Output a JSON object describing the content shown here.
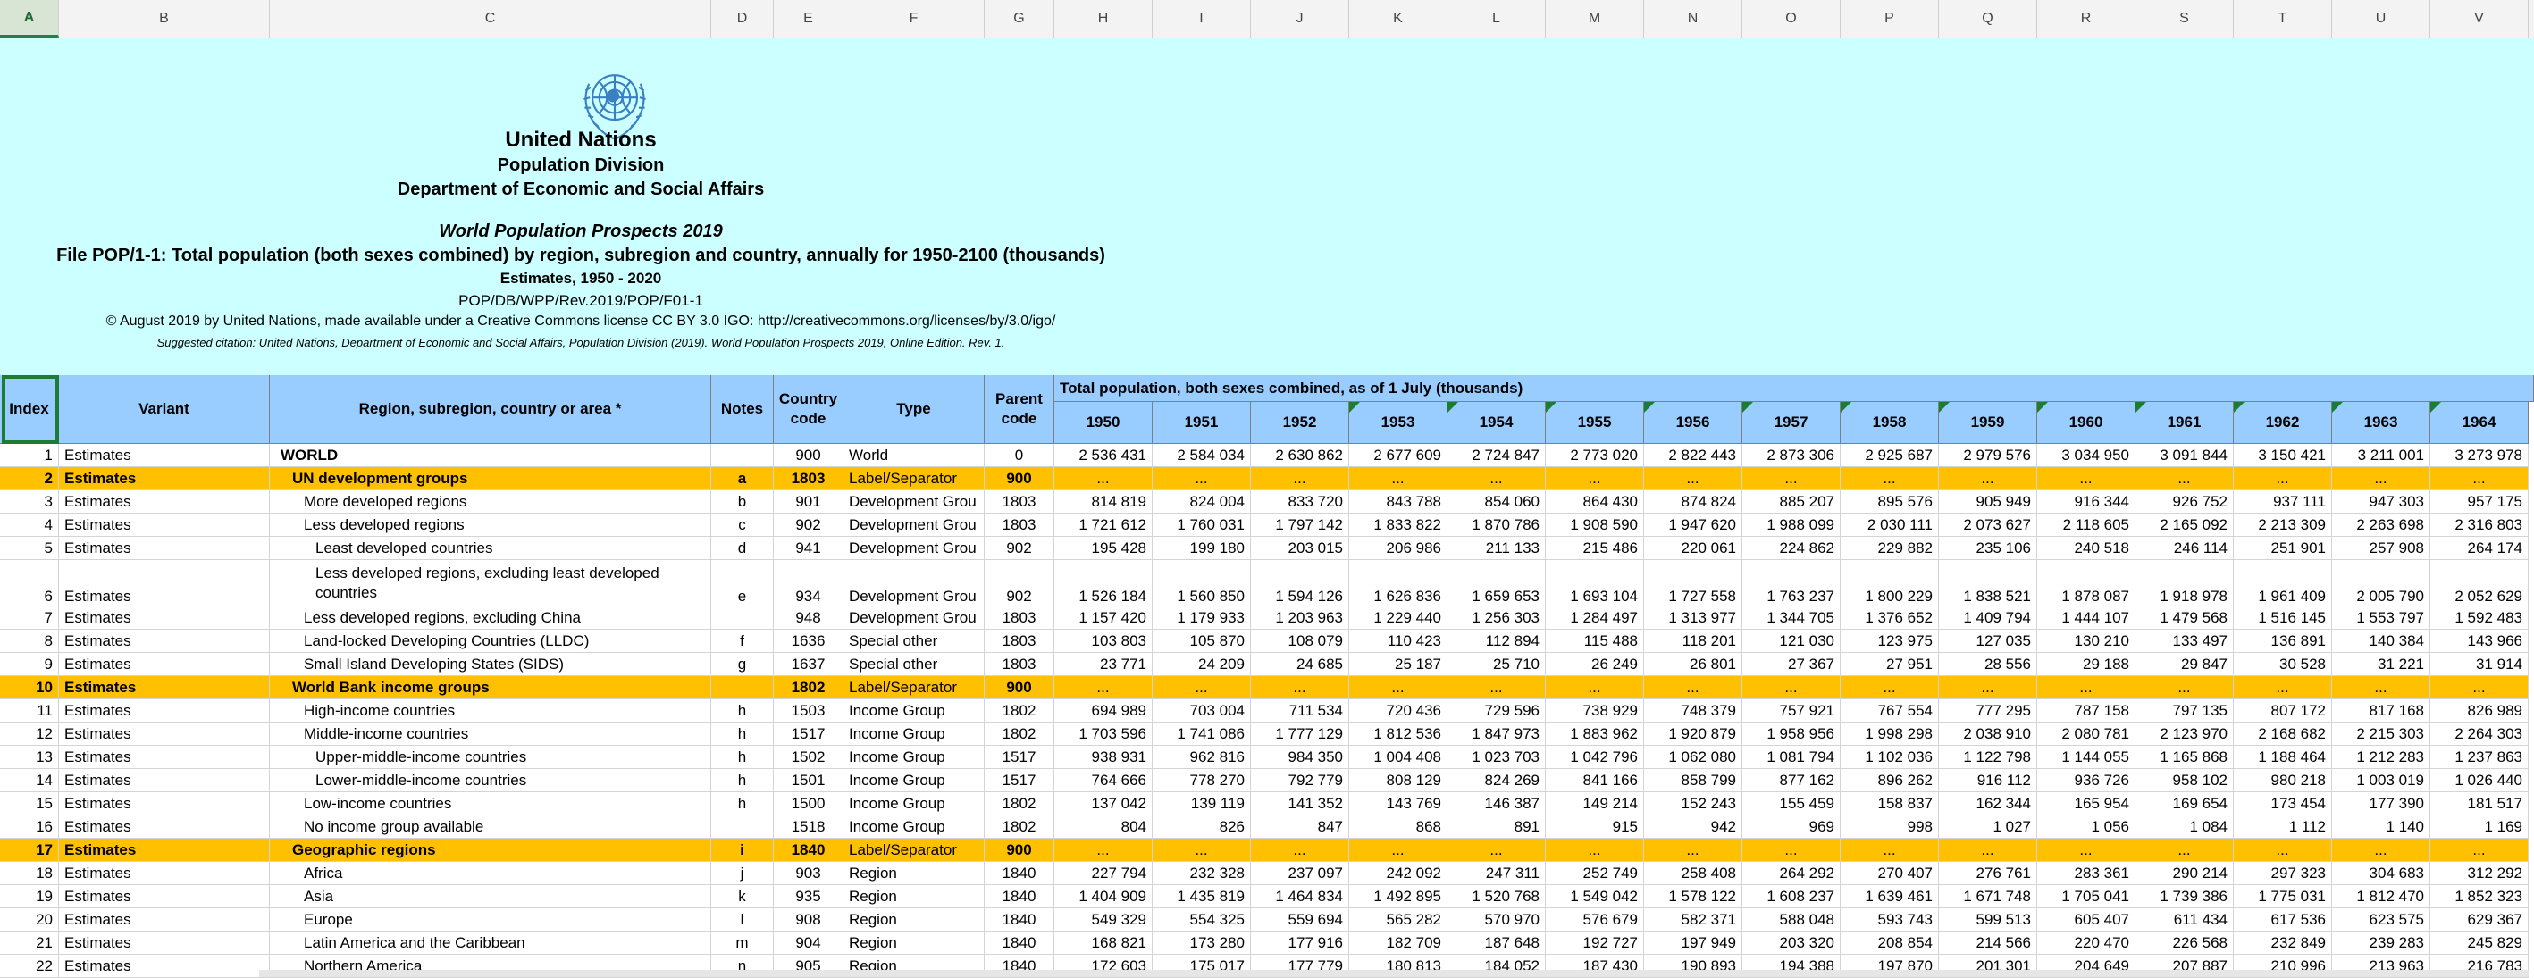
{
  "columns": [
    "A",
    "B",
    "C",
    "D",
    "E",
    "F",
    "G",
    "H",
    "I",
    "J",
    "K",
    "L",
    "M",
    "N",
    "O",
    "P",
    "Q",
    "R",
    "S",
    "T",
    "U",
    "V"
  ],
  "selected_column": "A",
  "banner": {
    "org": "United Nations",
    "division": "Population Division",
    "dept": "Department of Economic and Social Affairs",
    "publication": "World Population Prospects 2019",
    "file_title": "File POP/1-1: Total population (both sexes combined) by region, subregion and country, annually for 1950-2100 (thousands)",
    "estimates": "Estimates, 1950 - 2020",
    "code": "POP/DB/WPP/Rev.2019/POP/F01-1",
    "license": "© August 2019 by United Nations, made available under a Creative Commons license CC BY 3.0 IGO: http://creativecommons.org/licenses/by/3.0/igo/",
    "citation": "Suggested citation: United Nations, Department of Economic and Social Affairs, Population Division (2019). World Population Prospects 2019, Online Edition. Rev. 1."
  },
  "header": {
    "index": "Index",
    "variant": "Variant",
    "region": "Region, subregion, country or area *",
    "notes": "Notes",
    "country_code": "Country code",
    "type": "Type",
    "parent_code": "Parent code",
    "span_title": "Total population, both sexes combined, as of 1 July (thousands)",
    "years": [
      "1950",
      "1951",
      "1952",
      "1953",
      "1954",
      "1955",
      "1956",
      "1957",
      "1958",
      "1959",
      "1960",
      "1961",
      "1962",
      "1963",
      "1964"
    ]
  },
  "colors": {
    "banner_bg": "#ccffff",
    "header_bg": "#99ccff",
    "separator_bg": "#ffc000",
    "selection": "#1e7b34"
  },
  "rows": [
    {
      "index": "1",
      "variant": "Estimates",
      "region": "WORLD",
      "indent": 0,
      "bold": true,
      "notes": "",
      "code": "900",
      "type": "World",
      "parent": "0",
      "sep": false,
      "values": [
        "2 536 431",
        "2 584 034",
        "2 630 862",
        "2 677 609",
        "2 724 847",
        "2 773 020",
        "2 822 443",
        "2 873 306",
        "2 925 687",
        "2 979 576",
        "3 034 950",
        "3 091 844",
        "3 150 421",
        "3 211 001",
        "3 273 978"
      ]
    },
    {
      "index": "2",
      "variant": "Estimates",
      "region": "UN development groups",
      "indent": 1,
      "bold": true,
      "notes": "a",
      "code": "1803",
      "type": "Label/Separator",
      "parent": "900",
      "sep": true,
      "values": [
        "...",
        "...",
        "...",
        "...",
        "...",
        "...",
        "...",
        "...",
        "...",
        "...",
        "...",
        "...",
        "...",
        "...",
        "..."
      ]
    },
    {
      "index": "3",
      "variant": "Estimates",
      "region": "More developed regions",
      "indent": 2,
      "notes": "b",
      "code": "901",
      "type": "Development Grou",
      "parent": "1803",
      "values": [
        "814 819",
        "824 004",
        "833 720",
        "843 788",
        "854 060",
        "864 430",
        "874 824",
        "885 207",
        "895 576",
        "905 949",
        "916 344",
        "926 752",
        "937 111",
        "947 303",
        "957 175"
      ]
    },
    {
      "index": "4",
      "variant": "Estimates",
      "region": "Less developed regions",
      "indent": 2,
      "notes": "c",
      "code": "902",
      "type": "Development Grou",
      "parent": "1803",
      "values": [
        "1 721 612",
        "1 760 031",
        "1 797 142",
        "1 833 822",
        "1 870 786",
        "1 908 590",
        "1 947 620",
        "1 988 099",
        "2 030 111",
        "2 073 627",
        "2 118 605",
        "2 165 092",
        "2 213 309",
        "2 263 698",
        "2 316 803"
      ]
    },
    {
      "index": "5",
      "variant": "Estimates",
      "region": "Least developed countries",
      "indent": 3,
      "notes": "d",
      "code": "941",
      "type": "Development Grou",
      "parent": "902",
      "values": [
        "195 428",
        "199 180",
        "203 015",
        "206 986",
        "211 133",
        "215 486",
        "220 061",
        "224 862",
        "229 882",
        "235 106",
        "240 518",
        "246 114",
        "251 901",
        "257 908",
        "264 174"
      ]
    },
    {
      "index": "6",
      "variant": "Estimates",
      "region": "Less developed regions, excluding least developed countries",
      "indent": 3,
      "tall": true,
      "notes": "e",
      "code": "934",
      "type": "Development Grou",
      "parent": "902",
      "values": [
        "1 526 184",
        "1 560 850",
        "1 594 126",
        "1 626 836",
        "1 659 653",
        "1 693 104",
        "1 727 558",
        "1 763 237",
        "1 800 229",
        "1 838 521",
        "1 878 087",
        "1 918 978",
        "1 961 409",
        "2 005 790",
        "2 052 629"
      ]
    },
    {
      "index": "7",
      "variant": "Estimates",
      "region": "Less developed regions, excluding China",
      "indent": 2,
      "notes": "",
      "code": "948",
      "type": "Development Grou",
      "parent": "1803",
      "values": [
        "1 157 420",
        "1 179 933",
        "1 203 963",
        "1 229 440",
        "1 256 303",
        "1 284 497",
        "1 313 977",
        "1 344 705",
        "1 376 652",
        "1 409 794",
        "1 444 107",
        "1 479 568",
        "1 516 145",
        "1 553 797",
        "1 592 483"
      ]
    },
    {
      "index": "8",
      "variant": "Estimates",
      "region": "Land-locked Developing Countries (LLDC)",
      "indent": 2,
      "notes": "f",
      "code": "1636",
      "type": "Special other",
      "parent": "1803",
      "values": [
        "103 803",
        "105 870",
        "108 079",
        "110 423",
        "112 894",
        "115 488",
        "118 201",
        "121 030",
        "123 975",
        "127 035",
        "130 210",
        "133 497",
        "136 891",
        "140 384",
        "143 966"
      ]
    },
    {
      "index": "9",
      "variant": "Estimates",
      "region": "Small Island Developing States (SIDS)",
      "indent": 2,
      "notes": "g",
      "code": "1637",
      "type": "Special other",
      "parent": "1803",
      "values": [
        "23 771",
        "24 209",
        "24 685",
        "25 187",
        "25 710",
        "26 249",
        "26 801",
        "27 367",
        "27 951",
        "28 556",
        "29 188",
        "29 847",
        "30 528",
        "31 221",
        "31 914"
      ]
    },
    {
      "index": "10",
      "variant": "Estimates",
      "region": "World Bank income groups",
      "indent": 1,
      "bold": true,
      "notes": "",
      "code": "1802",
      "type": "Label/Separator",
      "parent": "900",
      "sep": true,
      "values": [
        "...",
        "...",
        "...",
        "...",
        "...",
        "...",
        "...",
        "...",
        "...",
        "...",
        "...",
        "...",
        "...",
        "...",
        "..."
      ]
    },
    {
      "index": "11",
      "variant": "Estimates",
      "region": "High-income countries",
      "indent": 2,
      "notes": "h",
      "code": "1503",
      "type": "Income Group",
      "parent": "1802",
      "values": [
        "694 989",
        "703 004",
        "711 534",
        "720 436",
        "729 596",
        "738 929",
        "748 379",
        "757 921",
        "767 554",
        "777 295",
        "787 158",
        "797 135",
        "807 172",
        "817 168",
        "826 989"
      ]
    },
    {
      "index": "12",
      "variant": "Estimates",
      "region": "Middle-income countries",
      "indent": 2,
      "notes": "h",
      "code": "1517",
      "type": "Income Group",
      "parent": "1802",
      "values": [
        "1 703 596",
        "1 741 086",
        "1 777 129",
        "1 812 536",
        "1 847 973",
        "1 883 962",
        "1 920 879",
        "1 958 956",
        "1 998 298",
        "2 038 910",
        "2 080 781",
        "2 123 970",
        "2 168 682",
        "2 215 303",
        "2 264 303"
      ]
    },
    {
      "index": "13",
      "variant": "Estimates",
      "region": "Upper-middle-income countries",
      "indent": 3,
      "notes": "h",
      "code": "1502",
      "type": "Income Group",
      "parent": "1517",
      "values": [
        "938 931",
        "962 816",
        "984 350",
        "1 004 408",
        "1 023 703",
        "1 042 796",
        "1 062 080",
        "1 081 794",
        "1 102 036",
        "1 122 798",
        "1 144 055",
        "1 165 868",
        "1 188 464",
        "1 212 283",
        "1 237 863"
      ]
    },
    {
      "index": "14",
      "variant": "Estimates",
      "region": "Lower-middle-income countries",
      "indent": 3,
      "notes": "h",
      "code": "1501",
      "type": "Income Group",
      "parent": "1517",
      "values": [
        "764 666",
        "778 270",
        "792 779",
        "808 129",
        "824 269",
        "841 166",
        "858 799",
        "877 162",
        "896 262",
        "916 112",
        "936 726",
        "958 102",
        "980 218",
        "1 003 019",
        "1 026 440"
      ]
    },
    {
      "index": "15",
      "variant": "Estimates",
      "region": "Low-income countries",
      "indent": 2,
      "notes": "h",
      "code": "1500",
      "type": "Income Group",
      "parent": "1802",
      "values": [
        "137 042",
        "139 119",
        "141 352",
        "143 769",
        "146 387",
        "149 214",
        "152 243",
        "155 459",
        "158 837",
        "162 344",
        "165 954",
        "169 654",
        "173 454",
        "177 390",
        "181 517"
      ]
    },
    {
      "index": "16",
      "variant": "Estimates",
      "region": "No income group available",
      "indent": 2,
      "notes": "",
      "code": "1518",
      "type": "Income Group",
      "parent": "1802",
      "values": [
        "804",
        "826",
        "847",
        "868",
        "891",
        "915",
        "942",
        "969",
        "998",
        "1 027",
        "1 056",
        "1 084",
        "1 112",
        "1 140",
        "1 169"
      ]
    },
    {
      "index": "17",
      "variant": "Estimates",
      "region": "Geographic regions",
      "indent": 1,
      "bold": true,
      "notes": "i",
      "code": "1840",
      "type": "Label/Separator",
      "parent": "900",
      "sep": true,
      "values": [
        "...",
        "...",
        "...",
        "...",
        "...",
        "...",
        "...",
        "...",
        "...",
        "...",
        "...",
        "...",
        "...",
        "...",
        "..."
      ]
    },
    {
      "index": "18",
      "variant": "Estimates",
      "region": "Africa",
      "indent": 2,
      "notes": "j",
      "code": "903",
      "type": "Region",
      "parent": "1840",
      "values": [
        "227 794",
        "232 328",
        "237 097",
        "242 092",
        "247 311",
        "252 749",
        "258 408",
        "264 292",
        "270 407",
        "276 761",
        "283 361",
        "290 214",
        "297 323",
        "304 683",
        "312 292"
      ]
    },
    {
      "index": "19",
      "variant": "Estimates",
      "region": "Asia",
      "indent": 2,
      "notes": "k",
      "code": "935",
      "type": "Region",
      "parent": "1840",
      "values": [
        "1 404 909",
        "1 435 819",
        "1 464 834",
        "1 492 895",
        "1 520 768",
        "1 549 042",
        "1 578 122",
        "1 608 237",
        "1 639 461",
        "1 671 748",
        "1 705 041",
        "1 739 386",
        "1 775 031",
        "1 812 470",
        "1 852 323"
      ]
    },
    {
      "index": "20",
      "variant": "Estimates",
      "region": "Europe",
      "indent": 2,
      "notes": "l",
      "code": "908",
      "type": "Region",
      "parent": "1840",
      "values": [
        "549 329",
        "554 325",
        "559 694",
        "565 282",
        "570 970",
        "576 679",
        "582 371",
        "588 048",
        "593 743",
        "599 513",
        "605 407",
        "611 434",
        "617 536",
        "623 575",
        "629 367"
      ]
    },
    {
      "index": "21",
      "variant": "Estimates",
      "region": "Latin America and the Caribbean",
      "indent": 2,
      "notes": "m",
      "code": "904",
      "type": "Region",
      "parent": "1840",
      "values": [
        "168 821",
        "173 280",
        "177 916",
        "182 709",
        "187 648",
        "192 727",
        "197 949",
        "203 320",
        "208 854",
        "214 566",
        "220 470",
        "226 568",
        "232 849",
        "239 283",
        "245 829"
      ]
    },
    {
      "index": "22",
      "variant": "Estimates",
      "region": "Northern America",
      "indent": 2,
      "notes": "n",
      "code": "905",
      "type": "Region",
      "parent": "1840",
      "values": [
        "172 603",
        "175 017",
        "177 779",
        "180 813",
        "184 052",
        "187 430",
        "190 893",
        "194 388",
        "197 870",
        "201 301",
        "204 649",
        "207 887",
        "210 996",
        "213 963",
        "216 783"
      ]
    }
  ]
}
